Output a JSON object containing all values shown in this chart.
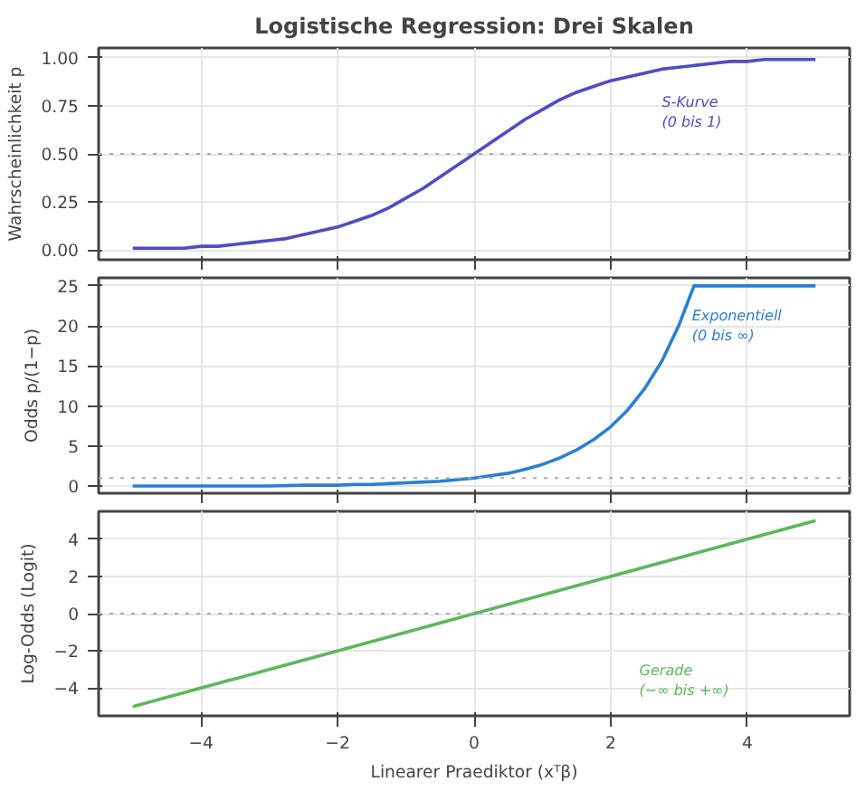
{
  "chart_data": [
    {
      "type": "line",
      "title": "Logistische Regression: Drei Skalen",
      "ylabel": "Wahrscheinlichkeit p",
      "xlim": [
        -5.5,
        5.5
      ],
      "xticks": [
        -4,
        -2,
        0,
        2,
        4
      ],
      "ylim": [
        -0.05,
        1.05
      ],
      "yticks": [
        {
          "value": 0,
          "label": "0.00"
        },
        {
          "value": 0.25,
          "label": "0.25"
        },
        {
          "value": 0.5,
          "label": "0.50"
        },
        {
          "value": 0.75,
          "label": "0.75"
        },
        {
          "value": 1,
          "label": "1.00"
        }
      ],
      "grid": true,
      "tick_labels": "y",
      "line_style": "solid",
      "x": [
        -5,
        -4.75,
        -4.5,
        -4.25,
        -4,
        -3.75,
        -3.5,
        -3.25,
        -3,
        -2.75,
        -2.5,
        -2.25,
        -2,
        -1.75,
        -1.5,
        -1.25,
        -1,
        -0.75,
        -0.5,
        -0.25,
        0,
        0.25,
        0.5,
        0.75,
        1,
        1.25,
        1.5,
        1.75,
        2,
        2.25,
        2.5,
        2.75,
        3,
        3.25,
        3.5,
        3.75,
        4,
        4.25,
        4.5,
        4.75,
        5
      ],
      "series": [
        {
          "color": "#4f4cc4",
          "values": [
            0.01,
            0.01,
            0.01,
            0.01,
            0.02,
            0.02,
            0.03,
            0.04,
            0.05,
            0.06,
            0.08,
            0.1,
            0.12,
            0.15,
            0.18,
            0.22,
            0.27,
            0.32,
            0.38,
            0.44,
            0.5,
            0.56,
            0.62,
            0.68,
            0.73,
            0.78,
            0.82,
            0.85,
            0.88,
            0.9,
            0.92,
            0.94,
            0.95,
            0.96,
            0.97,
            0.98,
            0.98,
            0.99,
            0.99,
            0.99,
            0.99
          ]
        }
      ],
      "ref_lines": [
        {
          "axis": "y",
          "value": 0.5,
          "color": "#aaaaaa",
          "line_style": "dotted"
        }
      ],
      "annotations": [
        "S-Kurve\n(0 bis 1)"
      ]
    },
    {
      "type": "line",
      "ylabel": "Odds p/(1−p)",
      "xlim": [
        -5.5,
        5.5
      ],
      "xticks": [
        -4,
        -2,
        0,
        2,
        4
      ],
      "ylim": [
        -0.9,
        26
      ],
      "yticks": [
        0,
        5,
        10,
        15,
        20,
        25
      ],
      "grid": true,
      "tick_labels": "y",
      "line_style": "solid",
      "series": [
        {
          "color": "#2a7fd4",
          "x": [
            -5,
            -4.5,
            -4,
            -3.5,
            -3,
            -2.5,
            -2,
            -1.75,
            -1.5,
            -1.25,
            -1,
            -0.75,
            -0.5,
            -0.25,
            0,
            0.25,
            0.5,
            0.75,
            1,
            1.25,
            1.5,
            1.75,
            2,
            2.25,
            2.5,
            2.75,
            3,
            3.22,
            5
          ],
          "values": [
            0,
            0,
            0,
            0,
            0,
            0.1,
            0.1,
            0.2,
            0.2,
            0.3,
            0.4,
            0.5,
            0.6,
            0.8,
            1,
            1.3,
            1.6,
            2.1,
            2.7,
            3.5,
            4.5,
            5.8,
            7.4,
            9.5,
            12.2,
            15.6,
            20.1,
            25,
            25
          ]
        }
      ],
      "ref_lines": [
        {
          "axis": "y",
          "value": 1,
          "color": "#aaaaaa",
          "line_style": "dotted"
        }
      ],
      "annotations": [
        "Exponentiell\n(0 bis ∞)"
      ]
    },
    {
      "type": "line",
      "ylabel": "Log-Odds (Logit)",
      "xlabel": "Linearer Praediktor (xᵀβ)",
      "xlim": [
        -5.5,
        5.5
      ],
      "xticks": [
        {
          "value": -4,
          "label": "−4"
        },
        {
          "value": -2,
          "label": "−2"
        },
        0,
        2,
        4
      ],
      "ylim": [
        -5.5,
        5.5
      ],
      "yticks": [
        {
          "value": -4,
          "label": "−4"
        },
        {
          "value": -2,
          "label": "−2"
        },
        0,
        2,
        4
      ],
      "grid": true,
      "line_style": "solid",
      "series": [
        {
          "color": "#5cb85c",
          "x": [
            -5,
            5
          ],
          "values": [
            -5,
            5
          ]
        }
      ],
      "ref_lines": [
        {
          "axis": "y",
          "value": 0,
          "color": "#aaaaaa",
          "line_style": "dotted"
        }
      ],
      "annotations": [
        "Gerade\n(−∞ bis +∞)"
      ]
    }
  ]
}
